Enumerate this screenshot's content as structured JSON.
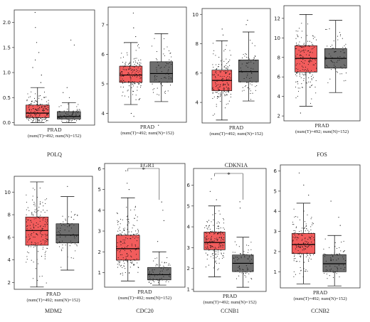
{
  "colors": {
    "tumor": "#f25c5c",
    "normal": "#6f6f6f",
    "points": "#111111",
    "axis": "#333333",
    "sig": "#e0201d"
  },
  "chart_data": [
    {
      "type": "box",
      "gene": "POLQ",
      "cohort": "PRAD",
      "counts": "(num(T)=492; num(N)=152)",
      "yticks": [
        0.0,
        0.5,
        1.0,
        1.5,
        2.0
      ],
      "ylim": [
        -0.05,
        2.25
      ],
      "series": [
        {
          "key": "T",
          "min": 0.0,
          "q1": 0.1,
          "median": 0.19,
          "q3": 0.35,
          "max": 0.7,
          "outliers": [
            0.8,
            0.95,
            1.1,
            1.25,
            1.4,
            1.6,
            1.9,
            2.2
          ]
        },
        {
          "key": "N",
          "min": 0.0,
          "q1": 0.07,
          "median": 0.12,
          "q3": 0.22,
          "max": 0.4,
          "outliers": [
            0.5,
            0.6,
            0.7,
            1.55,
            1.65
          ]
        }
      ],
      "significant": false
    },
    {
      "type": "box",
      "gene": "EGR1",
      "cohort": "PRAD",
      "counts": "(num(T)=492; num(N)=152)",
      "yticks": [
        4,
        5,
        6,
        7
      ],
      "ylim": [
        3.7,
        7.6
      ],
      "series": [
        {
          "key": "T",
          "min": 4.3,
          "q1": 5.05,
          "median": 5.3,
          "q3": 5.6,
          "max": 6.4,
          "outliers": [
            3.9,
            4.0,
            6.6,
            6.9,
            7.4
          ]
        },
        {
          "key": "N",
          "min": 4.4,
          "q1": 5.05,
          "median": 5.35,
          "q3": 5.75,
          "max": 6.7,
          "outliers": [
            3.6
          ]
        }
      ],
      "significant": false
    },
    {
      "type": "box",
      "gene": "CDKN1A",
      "cohort": "PRAD",
      "counts": "(num(T)=492; num(N)=152)",
      "yticks": [
        4,
        6,
        8,
        10
      ],
      "ylim": [
        2.6,
        10.4
      ],
      "series": [
        {
          "key": "T",
          "min": 2.8,
          "q1": 4.8,
          "median": 5.5,
          "q3": 6.2,
          "max": 8.2,
          "outliers": [
            8.6,
            9.0
          ]
        },
        {
          "key": "N",
          "min": 4.1,
          "q1": 5.4,
          "median": 6.1,
          "q3": 6.9,
          "max": 8.8,
          "outliers": [
            9.3,
            9.6
          ]
        }
      ],
      "significant": false
    },
    {
      "type": "box",
      "gene": "FOS",
      "cohort": "PRAD",
      "counts": "(num(T)=492; num(N)=152)",
      "yticks": [
        2,
        4,
        6,
        8,
        10,
        12
      ],
      "ylim": [
        1.5,
        13.3
      ],
      "series": [
        {
          "key": "T",
          "min": 3.0,
          "q1": 6.5,
          "median": 7.9,
          "q3": 9.2,
          "max": 12.4,
          "outliers": [
            2.3
          ]
        },
        {
          "key": "N",
          "min": 4.4,
          "q1": 6.9,
          "median": 7.9,
          "q3": 8.9,
          "max": 11.8,
          "outliers": []
        }
      ],
      "significant": false
    },
    {
      "type": "box",
      "gene": "MDM2",
      "cohort": "PRAD",
      "counts": "(num(T)=492; num(N)=152)",
      "yticks": [
        2,
        4,
        6,
        8,
        10
      ],
      "ylim": [
        1.4,
        11.4
      ],
      "series": [
        {
          "key": "T",
          "min": 1.6,
          "q1": 5.3,
          "median": 6.6,
          "q3": 7.8,
          "max": 10.9,
          "outliers": []
        },
        {
          "key": "N",
          "min": 3.1,
          "q1": 5.5,
          "median": 6.2,
          "q3": 7.2,
          "max": 9.6,
          "outliers": [
            10.5
          ]
        }
      ],
      "significant": false
    },
    {
      "type": "box",
      "gene": "CDC20",
      "cohort": "PRAD",
      "counts": "(num(T)=492; num(N)=152)",
      "yticks": [
        1,
        2,
        3,
        4,
        5,
        6
      ],
      "ylim": [
        0.3,
        6.25
      ],
      "series": [
        {
          "key": "T",
          "min": 0.6,
          "q1": 1.6,
          "median": 2.15,
          "q3": 2.8,
          "max": 4.6,
          "outliers": [
            5.0,
            5.3,
            5.9
          ]
        },
        {
          "key": "N",
          "min": 0.4,
          "q1": 0.65,
          "median": 0.9,
          "q3": 1.25,
          "max": 2.0,
          "outliers": [
            2.5,
            3.5,
            4.0,
            4.4
          ]
        }
      ],
      "significant": true
    },
    {
      "type": "box",
      "gene": "CCNB1",
      "cohort": "PRAD",
      "counts": "(num(T)=492; num(N)=152)",
      "yticks": [
        1,
        2,
        3,
        4,
        5,
        6
      ],
      "ylim": [
        0.9,
        6.8
      ],
      "series": [
        {
          "key": "T",
          "min": 1.6,
          "q1": 2.9,
          "median": 3.25,
          "q3": 3.75,
          "max": 5.0,
          "outliers": [
            5.3,
            5.7,
            6.3
          ]
        },
        {
          "key": "N",
          "min": 1.1,
          "q1": 1.85,
          "median": 2.25,
          "q3": 2.65,
          "max": 3.5,
          "outliers": [
            4.9,
            5.2
          ]
        }
      ],
      "significant": true
    },
    {
      "type": "box",
      "gene": "CCNB2",
      "cohort": "PRAD",
      "counts": "(num(T)=492; num(N)=152)",
      "yticks": [
        1,
        2,
        3,
        4,
        5,
        6
      ],
      "ylim": [
        0.2,
        6.3
      ],
      "series": [
        {
          "key": "T",
          "min": 0.4,
          "q1": 1.9,
          "median": 2.35,
          "q3": 2.9,
          "max": 4.4,
          "outliers": [
            4.8,
            5.3,
            5.9
          ]
        },
        {
          "key": "N",
          "min": 0.3,
          "q1": 1.0,
          "median": 1.4,
          "q3": 1.85,
          "max": 2.8,
          "outliers": [
            3.3,
            3.7,
            4.5
          ]
        }
      ],
      "significant": false
    }
  ]
}
